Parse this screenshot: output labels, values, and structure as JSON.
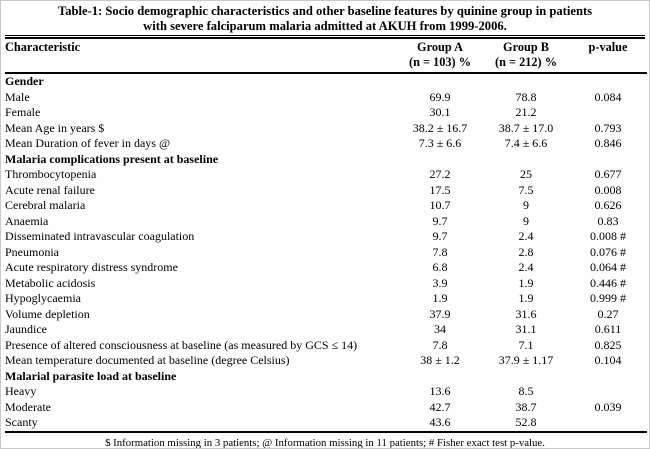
{
  "title": {
    "line1": "Table-1: Socio demographic characteristics and other baseline features by quinine group in patients",
    "line2": "with severe falciparum malaria admitted at AKUH from 1999-2006."
  },
  "table": {
    "columns": {
      "characteristic": "Characteristic",
      "group_a_line1": "Group A",
      "group_a_line2": "(n = 103) %",
      "group_b_line1": "Group B",
      "group_b_line2": "(n = 212) %",
      "p_value": "p-value"
    },
    "rows": [
      {
        "type": "section",
        "label": "Gender"
      },
      {
        "type": "data",
        "label": "Male",
        "group_a": "69.9",
        "group_b": "78.8",
        "p": "0.084"
      },
      {
        "type": "data",
        "label": "Female",
        "group_a": "30.1",
        "group_b": "21.2",
        "p": ""
      },
      {
        "type": "data",
        "label": "Mean Age in years $",
        "group_a": "38.2 ± 16.7",
        "group_b": "38.7 ± 17.0",
        "p": "0.793"
      },
      {
        "type": "data",
        "label": "Mean Duration of fever in days @",
        "group_a": "7.3 ± 6.6",
        "group_b": "7.4 ± 6.6",
        "p": "0.846"
      },
      {
        "type": "section",
        "label": "Malaria complications present at baseline"
      },
      {
        "type": "data",
        "label": "Thrombocytopenia",
        "group_a": "27.2",
        "group_b": "25",
        "p": "0.677"
      },
      {
        "type": "data",
        "label": "Acute renal failure",
        "group_a": "17.5",
        "group_b": "7.5",
        "p": "0.008"
      },
      {
        "type": "data",
        "label": "Cerebral malaria",
        "group_a": "10.7",
        "group_b": "9",
        "p": "0.626"
      },
      {
        "type": "data",
        "label": "Anaemia",
        "group_a": "9.7",
        "group_b": "9",
        "p": "0.83"
      },
      {
        "type": "data",
        "label": "Disseminated intravascular coagulation",
        "group_a": "9.7",
        "group_b": "2.4",
        "p": "0.008 #"
      },
      {
        "type": "data",
        "label": "Pneumonia",
        "group_a": "7.8",
        "group_b": "2.8",
        "p": "0.076 #"
      },
      {
        "type": "data",
        "label": "Acute respiratory distress syndrome",
        "group_a": "6.8",
        "group_b": "2.4",
        "p": "0.064 #"
      },
      {
        "type": "data",
        "label": "Metabolic acidosis",
        "group_a": "3.9",
        "group_b": "1.9",
        "p": "0.446 #"
      },
      {
        "type": "data",
        "label": "Hypoglycaemia",
        "group_a": "1.9",
        "group_b": "1.9",
        "p": "0.999 #"
      },
      {
        "type": "data",
        "label": "Volume depletion",
        "group_a": "37.9",
        "group_b": "31.6",
        "p": "0.27"
      },
      {
        "type": "data",
        "label": "Jaundice",
        "group_a": "34",
        "group_b": "31.1",
        "p": "0.611"
      },
      {
        "type": "data",
        "label": "Presence of altered consciousness at baseline (as measured by GCS ≤ 14)",
        "group_a": "7.8",
        "group_b": "7.1",
        "p": "0.825"
      },
      {
        "type": "data",
        "label": "Mean temperature documented at baseline (degree Celsius)",
        "group_a": "38 ± 1.2",
        "group_b": "37.9 ± 1.17",
        "p": "0.104"
      },
      {
        "type": "section",
        "label": "Malarial parasite load at baseline"
      },
      {
        "type": "data",
        "label": "Heavy",
        "group_a": "13.6",
        "group_b": "8.5",
        "p": ""
      },
      {
        "type": "data",
        "label": "Moderate",
        "group_a": "42.7",
        "group_b": "38.7",
        "p": "0.039"
      },
      {
        "type": "data",
        "label": "Scanty",
        "group_a": "43.6",
        "group_b": "52.8",
        "p": ""
      }
    ]
  },
  "footnote": "$ Information missing in 3 patients; @ Information missing in 11 patients; # Fisher exact test p-value."
}
